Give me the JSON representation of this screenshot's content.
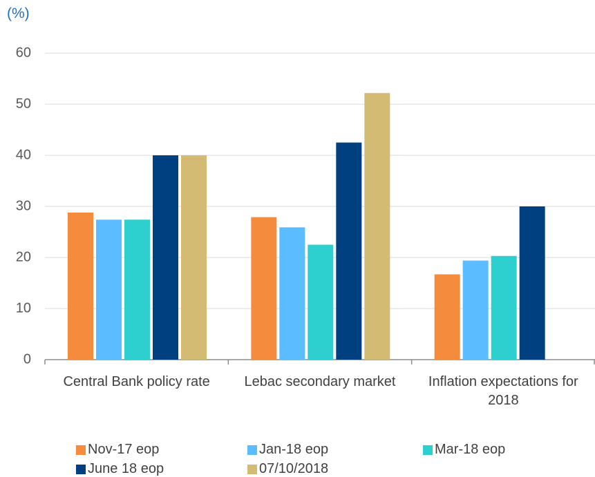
{
  "chart_data": {
    "type": "bar",
    "y_label": "(%)",
    "categories": [
      "Central Bank policy rate",
      "Lebac secondary market",
      "Inflation expectations for 2018"
    ],
    "series": [
      {
        "name": "Nov-17 eop",
        "color": "#f58b3c",
        "values": [
          28.8,
          27.9,
          16.7
        ]
      },
      {
        "name": "Jan-18 eop",
        "color": "#5bbcff",
        "values": [
          27.4,
          25.9,
          19.4
        ]
      },
      {
        "name": "Mar-18 eop",
        "color": "#2ecfcf",
        "values": [
          27.4,
          22.5,
          20.3
        ]
      },
      {
        "name": "June 18 eop",
        "color": "#004080",
        "values": [
          40,
          42.5,
          30
        ]
      },
      {
        "name": "07/10/2018",
        "color": "#d4bb74",
        "values": [
          40,
          52.2,
          null
        ]
      }
    ],
    "ylim": [
      0,
      60
    ],
    "yticks": [
      0,
      10,
      20,
      30,
      40,
      50,
      60
    ],
    "grid": true,
    "legend": "bottom"
  }
}
